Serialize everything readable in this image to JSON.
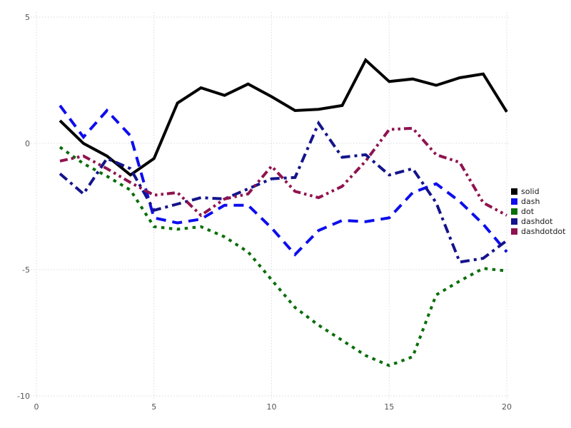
{
  "chart_data": {
    "type": "line",
    "x": [
      1,
      2,
      3,
      4,
      5,
      6,
      7,
      8,
      9,
      10,
      11,
      12,
      13,
      14,
      15,
      16,
      17,
      18,
      19,
      20
    ],
    "series": [
      {
        "name": "solid",
        "color": "#000000",
        "dash_style": "solid",
        "values": [
          0.9,
          0.0,
          -0.5,
          -1.25,
          -0.6,
          1.6,
          2.2,
          1.9,
          2.35,
          1.85,
          1.3,
          1.35,
          1.5,
          3.3,
          2.45,
          2.55,
          2.3,
          2.6,
          2.75,
          1.25
        ]
      },
      {
        "name": "dash",
        "color": "#0d0dee",
        "dash_style": "dash",
        "values": [
          1.5,
          0.25,
          1.3,
          0.3,
          -2.95,
          -3.15,
          -3.0,
          -2.45,
          -2.45,
          -3.35,
          -4.4,
          -3.45,
          -3.05,
          -3.1,
          -2.95,
          -1.95,
          -1.6,
          -2.3,
          -3.2,
          -4.3
        ]
      },
      {
        "name": "dot",
        "color": "#0a6e0a",
        "dash_style": "dot",
        "values": [
          -0.15,
          -0.8,
          -1.3,
          -1.85,
          -3.3,
          -3.4,
          -3.3,
          -3.7,
          -4.3,
          -5.4,
          -6.5,
          -7.2,
          -7.8,
          -8.4,
          -8.8,
          -8.45,
          -6.0,
          -5.45,
          -4.95,
          -5.05
        ]
      },
      {
        "name": "dashdot",
        "color": "#14148c",
        "dash_style": "dashdot",
        "values": [
          -1.2,
          -2.0,
          -0.6,
          -1.0,
          -2.65,
          -2.4,
          -2.15,
          -2.2,
          -1.8,
          -1.4,
          -1.35,
          0.8,
          -0.55,
          -0.45,
          -1.25,
          -1.0,
          -2.35,
          -4.7,
          -4.55,
          -3.85
        ]
      },
      {
        "name": "dashdotdot",
        "color": "#8f134f",
        "dash_style": "dashdotdot",
        "values": [
          -0.7,
          -0.5,
          -1.0,
          -1.55,
          -2.05,
          -1.95,
          -2.85,
          -2.2,
          -2.0,
          -0.9,
          -1.9,
          -2.15,
          -1.7,
          -0.7,
          0.55,
          0.6,
          -0.45,
          -0.75,
          -2.35,
          -2.85
        ]
      }
    ],
    "title": "",
    "xlabel": "",
    "ylabel": "",
    "x_ticks": [
      0,
      5,
      10,
      15,
      20
    ],
    "x_tick_labels": [
      "0",
      "5",
      "10",
      "15",
      "20"
    ],
    "y_ticks": [
      5,
      0,
      -5,
      -10
    ],
    "y_tick_labels": [
      "5",
      "0",
      "-5",
      "-10"
    ],
    "xlim": [
      0,
      20.1
    ],
    "ylim": [
      -10,
      5
    ],
    "grid": "dotted",
    "legend_position": "right"
  },
  "legend": {
    "items": [
      "solid",
      "dash",
      "dot",
      "dashdot",
      "dashdotdot"
    ]
  },
  "colors": {
    "background": "#ffffff",
    "grid": "#d9dae6",
    "tick_label": "#555555",
    "legend_text": "#1a1a1a"
  }
}
